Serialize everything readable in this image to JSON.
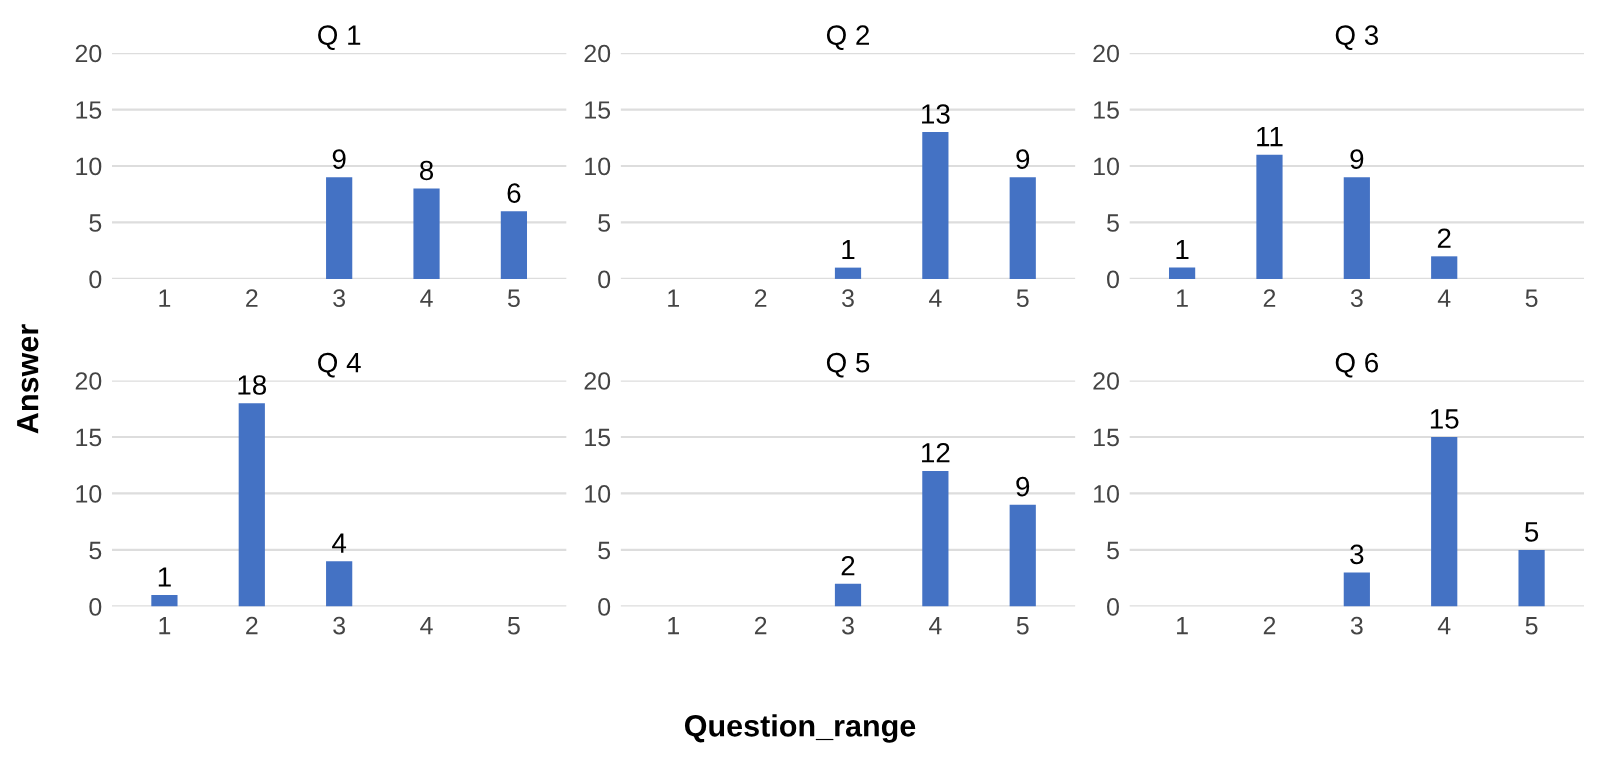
{
  "chart_data": [
    {
      "type": "bar",
      "title": "Q 1",
      "ylabel": "Answer",
      "categories": [
        "1",
        "2",
        "3",
        "4",
        "5"
      ],
      "values": [
        null,
        null,
        9,
        8,
        6
      ],
      "color": "#4472c4",
      "ylim": [
        0,
        20
      ],
      "yticks": [
        0,
        5,
        10,
        15,
        20
      ],
      "grid": "y",
      "data_labels": true
    },
    {
      "type": "bar",
      "title": "Q 2",
      "categories": [
        "1",
        "2",
        "3",
        "4",
        "5"
      ],
      "values": [
        null,
        null,
        1,
        13,
        9
      ],
      "color": "#4472c4",
      "ylim": [
        0,
        20
      ],
      "yticks": [
        0,
        5,
        10,
        15,
        20
      ],
      "grid": "y",
      "data_labels": true
    },
    {
      "type": "bar",
      "title": "Q 3",
      "categories": [
        "1",
        "2",
        "3",
        "4",
        "5"
      ],
      "values": [
        1,
        11,
        9,
        2,
        null
      ],
      "color": "#4472c4",
      "ylim": [
        0,
        20
      ],
      "yticks": [
        0,
        5,
        10,
        15,
        20
      ],
      "grid": "y",
      "data_labels": true
    },
    {
      "type": "bar",
      "title": "Q 4",
      "categories": [
        "1",
        "2",
        "3",
        "4",
        "5"
      ],
      "values": [
        1,
        18,
        4,
        null,
        null
      ],
      "color": "#4472c4",
      "ylim": [
        0,
        20
      ],
      "yticks": [
        0,
        5,
        10,
        15,
        20
      ],
      "grid": "y",
      "data_labels": true
    },
    {
      "type": "bar",
      "title": "Q 5",
      "xlabel": "Question_range",
      "categories": [
        "1",
        "2",
        "3",
        "4",
        "5"
      ],
      "values": [
        null,
        null,
        2,
        12,
        9
      ],
      "color": "#4472c4",
      "ylim": [
        0,
        20
      ],
      "yticks": [
        0,
        5,
        10,
        15,
        20
      ],
      "grid": "y",
      "data_labels": true
    },
    {
      "type": "bar",
      "title": "Q 6",
      "categories": [
        "1",
        "2",
        "3",
        "4",
        "5"
      ],
      "values": [
        null,
        null,
        3,
        15,
        5
      ],
      "color": "#4472c4",
      "ylim": [
        0,
        20
      ],
      "yticks": [
        0,
        5,
        10,
        15,
        20
      ],
      "grid": "y",
      "data_labels": true
    }
  ]
}
